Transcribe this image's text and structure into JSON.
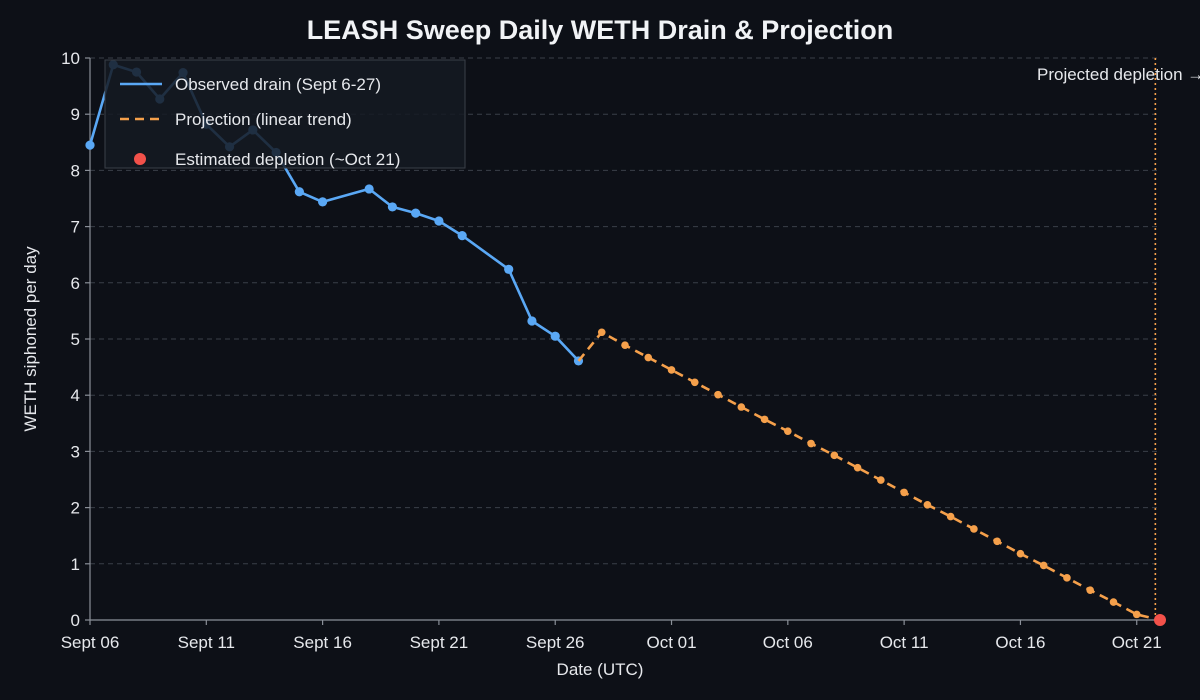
{
  "chart_data": {
    "type": "line",
    "title": "LEASH Sweep Daily WETH Drain & Projection",
    "xlabel": "Date (UTC)",
    "ylabel": "WETH siphoned per day",
    "ylim": [
      0,
      10
    ],
    "yticks": [
      "0",
      "1",
      "2",
      "3",
      "4",
      "5",
      "6",
      "7",
      "8",
      "9",
      "10"
    ],
    "xticks": [
      {
        "date": "2025-09-06",
        "label": "Sept 06"
      },
      {
        "date": "2025-09-11",
        "label": "Sept 11"
      },
      {
        "date": "2025-09-16",
        "label": "Sept 16"
      },
      {
        "date": "2025-09-21",
        "label": "Sept 21"
      },
      {
        "date": "2025-09-26",
        "label": "Sept 26"
      },
      {
        "date": "2025-10-01",
        "label": "Oct 01"
      },
      {
        "date": "2025-10-06",
        "label": "Oct 06"
      },
      {
        "date": "2025-10-11",
        "label": "Oct 11"
      },
      {
        "date": "2025-10-16",
        "label": "Oct 16"
      },
      {
        "date": "2025-10-21",
        "label": "Oct 21"
      }
    ],
    "xlim": [
      "2025-09-06",
      "2025-10-22"
    ],
    "grid": "horizontal dashed",
    "legend_position": "top-left",
    "series": [
      {
        "name": "Observed drain (Sept 6-27)",
        "style": "solid",
        "color": "#5aa8f5",
        "points": [
          {
            "x": "2025-09-06",
            "y": 8.45
          },
          {
            "x": "2025-09-07",
            "y": 9.88
          },
          {
            "x": "2025-09-08",
            "y": 9.75
          },
          {
            "x": "2025-09-09",
            "y": 9.27
          },
          {
            "x": "2025-09-10",
            "y": 9.74
          },
          {
            "x": "2025-09-11",
            "y": 8.82
          },
          {
            "x": "2025-09-12",
            "y": 8.42
          },
          {
            "x": "2025-09-13",
            "y": 8.72
          },
          {
            "x": "2025-09-14",
            "y": 8.32
          },
          {
            "x": "2025-09-15",
            "y": 7.62
          },
          {
            "x": "2025-09-16",
            "y": 7.44
          },
          {
            "x": "2025-09-18",
            "y": 7.67
          },
          {
            "x": "2025-09-19",
            "y": 7.35
          },
          {
            "x": "2025-09-20",
            "y": 7.24
          },
          {
            "x": "2025-09-21",
            "y": 7.1
          },
          {
            "x": "2025-09-22",
            "y": 6.84
          },
          {
            "x": "2025-09-24",
            "y": 6.24
          },
          {
            "x": "2025-09-25",
            "y": 5.32
          },
          {
            "x": "2025-09-26",
            "y": 5.05
          },
          {
            "x": "2025-09-27",
            "y": 4.61
          }
        ]
      },
      {
        "name": "Projection (linear trend)",
        "style": "dashed",
        "color": "#f5a04b",
        "points": [
          {
            "x": "2025-09-27",
            "y": 4.61
          },
          {
            "x": "2025-09-28",
            "y": 5.12
          },
          {
            "x": "2025-09-29",
            "y": 4.89
          },
          {
            "x": "2025-09-30",
            "y": 4.67
          },
          {
            "x": "2025-10-01",
            "y": 4.45
          },
          {
            "x": "2025-10-02",
            "y": 4.23
          },
          {
            "x": "2025-10-03",
            "y": 4.01
          },
          {
            "x": "2025-10-04",
            "y": 3.79
          },
          {
            "x": "2025-10-05",
            "y": 3.57
          },
          {
            "x": "2025-10-06",
            "y": 3.36
          },
          {
            "x": "2025-10-07",
            "y": 3.14
          },
          {
            "x": "2025-10-08",
            "y": 2.93
          },
          {
            "x": "2025-10-09",
            "y": 2.71
          },
          {
            "x": "2025-10-10",
            "y": 2.49
          },
          {
            "x": "2025-10-11",
            "y": 2.27
          },
          {
            "x": "2025-10-12",
            "y": 2.05
          },
          {
            "x": "2025-10-13",
            "y": 1.84
          },
          {
            "x": "2025-10-14",
            "y": 1.62
          },
          {
            "x": "2025-10-15",
            "y": 1.4
          },
          {
            "x": "2025-10-16",
            "y": 1.18
          },
          {
            "x": "2025-10-17",
            "y": 0.97
          },
          {
            "x": "2025-10-18",
            "y": 0.75
          },
          {
            "x": "2025-10-19",
            "y": 0.53
          },
          {
            "x": "2025-10-20",
            "y": 0.32
          },
          {
            "x": "2025-10-21",
            "y": 0.1
          },
          {
            "x": "2025-10-22",
            "y": 0.0
          }
        ]
      }
    ],
    "depletion_point": {
      "name": "Estimated depletion (~Oct 21)",
      "x": "2025-10-22",
      "y": 0,
      "color": "#f2514a"
    },
    "depletion_line": {
      "x": "2025-10-21.8",
      "label": "Projected depletion →",
      "color": "#f5a04b"
    }
  }
}
